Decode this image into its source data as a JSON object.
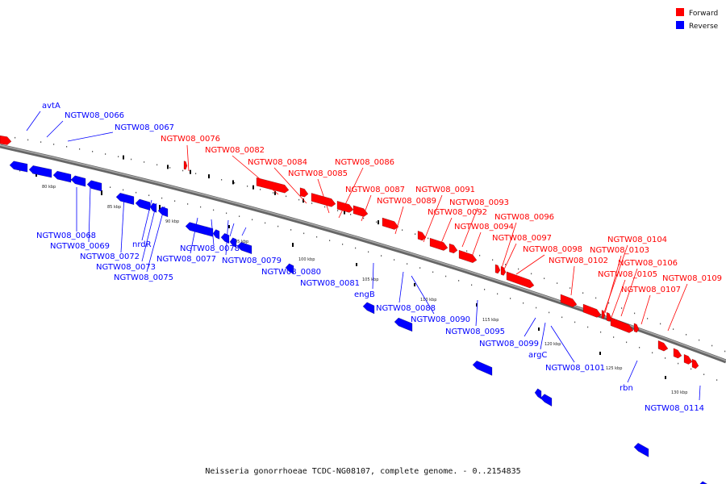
{
  "legend": [
    {
      "label": "Forward",
      "color": "#ff0000"
    },
    {
      "label": "Reverse",
      "color": "#0000ff"
    }
  ],
  "footer": "Neisseria gonorrhoeae TCDC-NG08107, complete genome. - 0..2154835",
  "kbp_ticks": [
    "80 kbp",
    "85 kbp",
    "90 kbp",
    "95 kbp",
    "100 kbp",
    "105 kbp",
    "110 kbp",
    "115 kbp",
    "120 kbp",
    "125 kbp",
    "130 kbp"
  ],
  "genes_forward": [
    "",
    "",
    "",
    "",
    "",
    "",
    "",
    "",
    "",
    "",
    "",
    "",
    "",
    "",
    "",
    "",
    "",
    "",
    "",
    "",
    "",
    "",
    "",
    "",
    "",
    "",
    "",
    ""
  ],
  "genes_reverse": [
    "",
    "",
    "",
    "",
    "",
    "",
    "",
    "",
    "",
    "",
    "",
    "",
    "",
    "",
    "",
    "",
    "",
    "",
    "",
    "",
    "",
    "",
    "",
    "",
    "",
    ""
  ],
  "labels_reverse": [
    "avtA",
    "NGTW08_0066",
    "NGTW08_0067",
    "NGTW08_0068",
    "NGTW08_0069",
    "NGTW08_0072",
    "nrdR",
    "NGTW08_0073",
    "NGTW08_0075",
    "NGTW08_0077",
    "NGTW08_0078",
    "NGTW08_0079",
    "NGTW08_0080",
    "NGTW08_0081",
    "engB",
    "NGTW08_0088",
    "NGTW08_0090",
    "NGTW08_0095",
    "NGTW08_0099",
    "argC",
    "NGTW08_0101",
    "rbn",
    "NGTW08_0114"
  ],
  "labels_forward": [
    "NGTW08_0076",
    "NGTW08_0082",
    "NGTW08_0084",
    "NGTW08_0085",
    "NGTW08_0086",
    "NGTW08_0087",
    "NGTW08_0089",
    "NGTW08_0091",
    "NGTW08_0093",
    "NGTW08_0092",
    "NGTW08_0094",
    "NGTW08_0096",
    "NGTW08_0097",
    "NGTW08_0098",
    "NGTW08_0102",
    "NGTW08_0104",
    "NGTW08_0103",
    "NGTW08_0106",
    "NGTW08_0105",
    "NGTW08_0107",
    "NGTW08_0109"
  ]
}
